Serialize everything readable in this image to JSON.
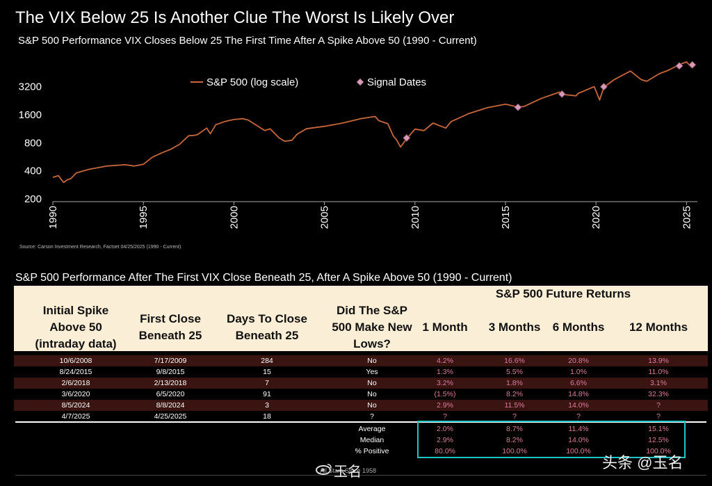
{
  "header": {
    "title": "The VIX Below 25 Is Another Clue The Worst Is Likely Over",
    "subtitle": "S&P 500 Performance VIX Closes Below 25 The First Time After A Spike Above 50 (1990 - Current)"
  },
  "chart_data": {
    "type": "line",
    "title": "The VIX Below 25 Is Another Clue The Worst Is Likely Over",
    "subtitle": "S&P 500 Performance VIX Closes Below 25 The First Time After A Spike Above 50 (1990 - Current)",
    "y_scale": "log",
    "ylim": [
      200,
      5600
    ],
    "xlim": [
      1990.0,
      2025.6
    ],
    "y_ticks": [
      200,
      400,
      800,
      1600,
      3200
    ],
    "x_ticks": [
      1990,
      1995,
      2000,
      2005,
      2010,
      2015,
      2020,
      2025
    ],
    "legend_position": "top-center",
    "series": [
      {
        "name": "S&P 500 (log scale)",
        "color": "#c8673a",
        "x": [
          1990.0,
          1990.3,
          1990.6,
          1990.8,
          1991.0,
          1991.3,
          1992.0,
          1993.0,
          1994.0,
          1994.5,
          1995.0,
          1995.5,
          1996.0,
          1996.5,
          1997.0,
          1997.5,
          1997.8,
          1998.0,
          1998.5,
          1998.7,
          1999.0,
          1999.5,
          2000.0,
          2000.5,
          2000.8,
          2001.0,
          2001.7,
          2002.0,
          2002.5,
          2002.8,
          2003.2,
          2003.5,
          2004.0,
          2005.0,
          2006.0,
          2007.0,
          2007.8,
          2008.0,
          2008.5,
          2008.8,
          2009.0,
          2009.2,
          2009.54,
          2010.0,
          2010.5,
          2011.0,
          2011.7,
          2012.0,
          2013.0,
          2014.0,
          2015.0,
          2015.6,
          2016.0,
          2017.0,
          2018.0,
          2018.1,
          2018.9,
          2019.0,
          2019.9,
          2020.2,
          2020.43,
          2021.0,
          2021.9,
          2022.5,
          2022.8,
          2023.5,
          2024.0,
          2024.6,
          2025.0,
          2025.25,
          2025.5
        ],
        "y": [
          340,
          355,
          300,
          320,
          330,
          380,
          415,
          450,
          465,
          450,
          470,
          560,
          620,
          680,
          770,
          950,
          960,
          980,
          1150,
          1000,
          1250,
          1350,
          1420,
          1450,
          1400,
          1320,
          1080,
          1130,
          900,
          830,
          850,
          990,
          1130,
          1200,
          1300,
          1450,
          1530,
          1380,
          1280,
          950,
          850,
          720,
          880,
          1120,
          1080,
          1300,
          1150,
          1350,
          1650,
          1900,
          2070,
          1950,
          1950,
          2400,
          2800,
          2650,
          2550,
          2700,
          3200,
          2300,
          3150,
          3800,
          4700,
          3800,
          3650,
          4400,
          4800,
          5500,
          5900,
          5200,
          5550
        ]
      },
      {
        "name": "Signal Dates",
        "color": "#d99ab8",
        "x": [
          2009.54,
          2015.69,
          2018.12,
          2020.43,
          2024.6,
          2025.32
        ],
        "y": [
          900,
          1920,
          2660,
          3190,
          5340,
          5480
        ]
      }
    ]
  },
  "source": "Source: Carson Investment Research, Factset 04/25/2025 (1990 - Current)",
  "table": {
    "title": "S&P 500 Performance After The First VIX Close Beneath 25, After A Spike Above 50 (1990 - Current)",
    "group_header": "S&P 500 Future Returns",
    "headers": [
      "Initial Spike Above 50 (intraday data)",
      "First Close Beneath 25",
      "Days To Close Beneath 25",
      "Did The S&P 500 Make New Lows?",
      "1 Month",
      "3 Months",
      "6 Months",
      "12 Months"
    ],
    "rows": [
      [
        "10/6/2008",
        "7/17/2009",
        "284",
        "No",
        "4.2%",
        "16.6%",
        "20.8%",
        "13.9%"
      ],
      [
        "8/24/2015",
        "9/8/2015",
        "15",
        "Yes",
        "1.3%",
        "5.5%",
        "1.0%",
        "11.0%"
      ],
      [
        "2/6/2018",
        "2/13/2018",
        "7",
        "No",
        "3.2%",
        "1.8%",
        "6.6%",
        "3.1%"
      ],
      [
        "3/6/2020",
        "6/5/2020",
        "91",
        "No",
        "(1.5%)",
        "8.2%",
        "14.8%",
        "32.3%"
      ],
      [
        "8/5/2024",
        "8/8/2024",
        "3",
        "No",
        "2.9%",
        "11.5%",
        "14.0%",
        "?"
      ],
      [
        "4/7/2025",
        "4/25/2025",
        "18",
        "?",
        "?",
        "?",
        "?",
        "?"
      ]
    ],
    "stats": [
      [
        "Average",
        "2.0%",
        "8.7%",
        "11.4%",
        "15.1%"
      ],
      [
        "Median",
        "2.9%",
        "8.2%",
        "14.0%",
        "12.5%"
      ],
      [
        "% Positive",
        "80.0%",
        "100.0%",
        "100.0%",
        "100.0%"
      ]
    ]
  },
  "watermarks": {
    "left_large": "玉名",
    "left_small": "All Stars Since 1958",
    "right": "头条 @玉名"
  }
}
